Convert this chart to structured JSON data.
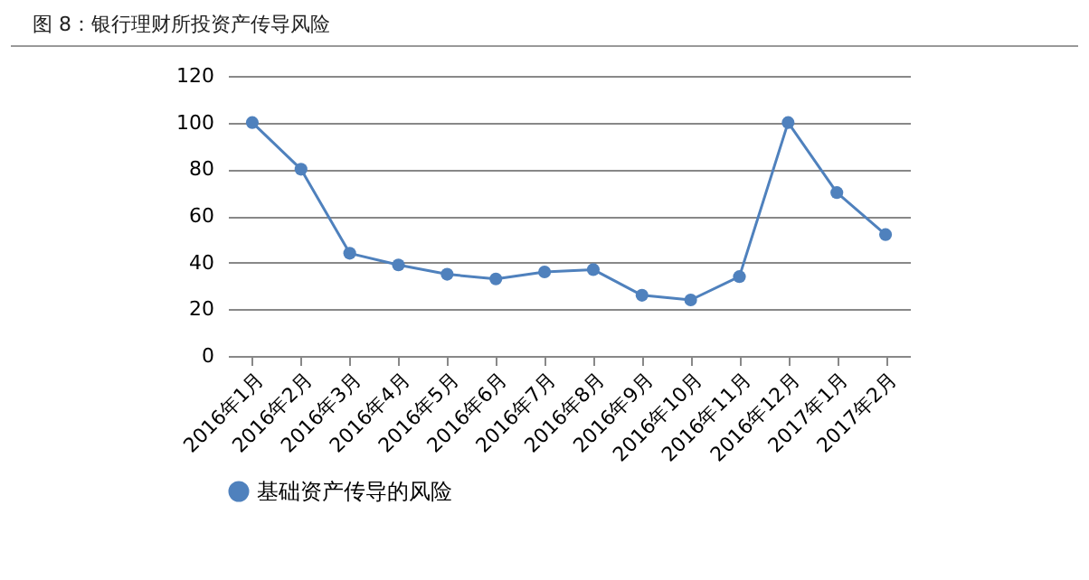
{
  "chart_data": {
    "type": "line",
    "title": "图 8：银行理财所投资产传导风险",
    "categories": [
      "2016年1月",
      "2016年2月",
      "2016年3月",
      "2016年4月",
      "2016年5月",
      "2016年6月",
      "2016年7月",
      "2016年8月",
      "2016年9月",
      "2016年10月",
      "2016年11月",
      "2016年12月",
      "2017年1月",
      "2017年2月"
    ],
    "series": [
      {
        "name": "基础资产传导的风险",
        "color": "#4f81bd",
        "values": [
          100,
          80,
          44,
          39,
          35,
          33,
          36,
          37,
          26,
          24,
          34,
          100,
          70,
          52
        ]
      }
    ],
    "ylim": [
      0,
      120
    ],
    "yticks": [
      0,
      20,
      40,
      60,
      80,
      100,
      120
    ],
    "grid": "y",
    "legend": "bottom",
    "marker": "circle",
    "line_style": "solid"
  }
}
